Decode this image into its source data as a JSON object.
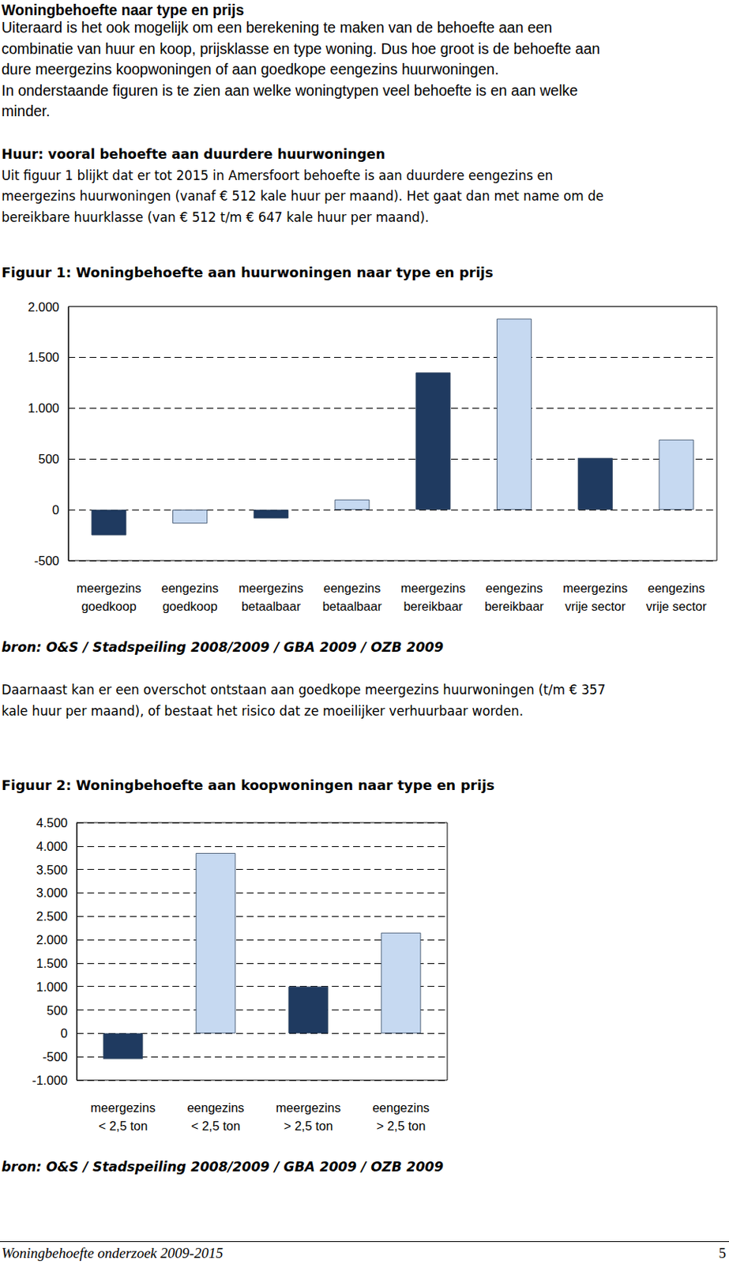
{
  "heading": "Woningbehoefte naar type en prijs",
  "intro": [
    "Uiteraard is het ook mogelijk om een berekening te maken van de behoefte aan een",
    "combinatie van huur en koop, prijsklasse en type woning. Dus hoe groot is de behoefte aan",
    "dure meergezins koopwoningen of aan goedkope eengezins huurwoningen.",
    "In onderstaande figuren is te zien aan welke woningtypen veel behoefte is en aan welke",
    "minder."
  ],
  "rent_section": {
    "title": "Huur: vooral behoefte aan duurdere huurwoningen",
    "lines": [
      "Uit figuur 1 blijkt dat er tot 2015 in Amersfoort behoefte is aan duurdere eengezins en",
      "meergezins huurwoningen (vanaf € 512 kale huur per maand). Het gaat dan met name om de",
      "bereikbare huurklasse (van € 512 t/m € 647 kale huur per maand)."
    ]
  },
  "after_figure_1": [
    "Daarnaast kan er een overschot ontstaan aan goedkope meergezins huurwoningen (t/m € 357",
    "kale huur per maand), of bestaat het risico dat ze moeilijker verhuurbaar worden."
  ],
  "chart_data": [
    {
      "type": "bar",
      "title": "Figuur 1: Woningbehoefte aan huurwoningen naar type en prijs",
      "source": "bron: O&S / Stadspeiling 2008/2009 / GBA 2009 / OZB 2009",
      "categories": [
        "meergezins\ngoedkoop",
        "eengezins\ngoedkoop",
        "meergezins\nbetaalbaar",
        "eengezins\nbetaalbaar",
        "meergezins\nbereikbaar",
        "eengezins\nbereikbaar",
        "meergezins\nvrije sector",
        "eengezins\nvrije sector"
      ],
      "values": [
        -250,
        -135,
        -85,
        100,
        1350,
        1880,
        510,
        690
      ],
      "colors": [
        "#1f3a60",
        "#c6d9f1",
        "#1f3a60",
        "#c6d9f1",
        "#1f3a60",
        "#c6d9f1",
        "#1f3a60",
        "#c6d9f1"
      ],
      "ylim": [
        -500,
        2000
      ],
      "yticks": [
        -500,
        0,
        500,
        {
          "value": 1000,
          "label": "1.000"
        },
        {
          "value": 1500,
          "label": "1.500"
        },
        {
          "value": 2000,
          "label": "2.000"
        }
      ],
      "grid": true
    },
    {
      "type": "bar",
      "title": "Figuur 2: Woningbehoefte aan koopwoningen naar type en prijs",
      "source": "bron: O&S / Stadspeiling 2008/2009 / GBA 2009 / OZB 2009",
      "categories": [
        "meergezins\n< 2,5 ton",
        "eengezins\n< 2,5 ton",
        "meergezins\n> 2,5 ton",
        "eengezins\n> 2,5 ton"
      ],
      "values": [
        -550,
        3850,
        1000,
        2150
      ],
      "colors": [
        "#1f3a60",
        "#c6d9f1",
        "#1f3a60",
        "#c6d9f1"
      ],
      "ylim": [
        -1000,
        4500
      ],
      "yticks": [
        {
          "value": -1000,
          "label": "-1.000"
        },
        -500,
        0,
        500,
        {
          "value": 1000,
          "label": "1.000"
        },
        {
          "value": 1500,
          "label": "1.500"
        },
        {
          "value": 2000,
          "label": "2.000"
        },
        {
          "value": 2500,
          "label": "2.500"
        },
        {
          "value": 3000,
          "label": "3.000"
        },
        {
          "value": 3500,
          "label": "3.500"
        },
        {
          "value": 4000,
          "label": "4.000"
        },
        {
          "value": 4500,
          "label": "4.500"
        }
      ],
      "grid": true
    }
  ],
  "footer": {
    "title": "Woningbehoefte onderzoek 2009-2015",
    "page": 5
  }
}
